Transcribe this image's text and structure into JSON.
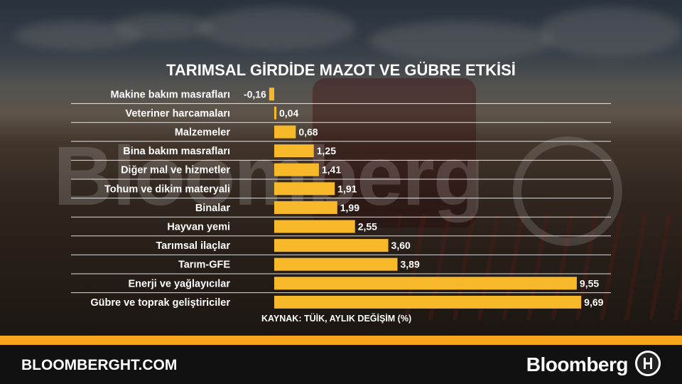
{
  "page": {
    "title": "TARIMSAL GİRDİDE MAZOT VE GÜBRE ETKİSİ",
    "source": "KAYNAK: TÜİK, AYLIK DEĞİŞİM (%)",
    "watermark": "Bloomberg",
    "footer_url": "BLOOMBERGHT.COM",
    "footer_brand": "Bloomberg",
    "accent_color": "#f7b82a",
    "footer_bar_color": "#f7a51c"
  },
  "chart_data": {
    "type": "bar",
    "orientation": "horizontal",
    "title": "TARIMSAL GİRDİDE MAZOT VE GÜBRE ETKİSİ",
    "xlabel": "",
    "ylabel": "",
    "grid": false,
    "categories": [
      "Makine bakım masrafları",
      "Veteriner harcamaları",
      "Malzemeler",
      "Bina bakım masrafları",
      "Diğer mal ve hizmetler",
      "Tohum ve dikim materyali",
      "Binalar",
      "Hayvan yemi",
      "Tarımsal ilaçlar",
      "Tarım-GFE",
      "Enerji ve yağlayıcılar",
      "Gübre ve toprak geliştiriciler"
    ],
    "values": [
      -0.16,
      0.04,
      0.68,
      1.25,
      1.41,
      1.91,
      1.99,
      2.55,
      3.6,
      3.89,
      9.55,
      9.69
    ],
    "value_labels": [
      "-0,16",
      "0,04",
      "0,68",
      "1,25",
      "1,41",
      "1,91",
      "1,99",
      "2,55",
      "3,60",
      "3,89",
      "9,55",
      "9,69"
    ],
    "xlim": [
      -0.16,
      9.69
    ]
  }
}
